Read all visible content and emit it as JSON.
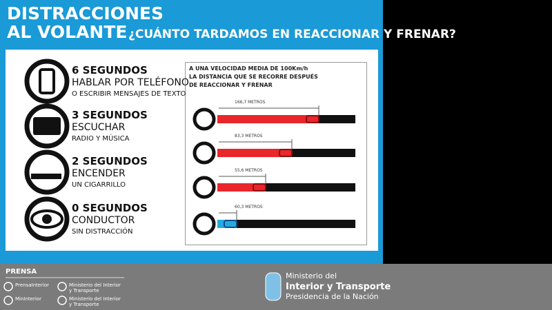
{
  "header": {
    "title_line1": "DISTRACCIONES",
    "title_line2": "AL VOLANTE",
    "subtitle": "¿CUÁNTO TARDAMOS EN REACCIONAR Y FRENAR?"
  },
  "items": [
    {
      "time": "6 SEGUNDOS",
      "action": "HABLAR POR TELÉFONO",
      "detail": "O ESCRIBIR MENSAJES DE TEXTO"
    },
    {
      "time": "3 SEGUNDOS",
      "action": "ESCUCHAR",
      "detail": "RADIO Y MÚSICA"
    },
    {
      "time": "2 SEGUNDOS",
      "action": "ENCENDER",
      "detail": "UN CIGARRILLO"
    },
    {
      "time": "0 SEGUNDOS",
      "action": "CONDUCTOR",
      "detail": "SIN DISTRACCIÓN"
    }
  ],
  "chart": {
    "caption": [
      "A UNA VELOCIDAD MEDIA DE 100Km/h",
      "LA DISTANCIA QUE SE RECORRE DESPUÉS",
      "DE REACCIONAR Y FRENAR"
    ],
    "distances": [
      "166,7 METROS",
      "83,3 METROS",
      "55,6 METROS",
      "60,3 METROS"
    ]
  },
  "footer": {
    "prensa": "PRENSA",
    "links": [
      "PrensaInterior",
      "Ministerio del Interior y Transporte",
      "MinInterior",
      "Ministerio del Interior y Transporte"
    ],
    "ministry": [
      "Ministerio del",
      "Interior y Transporte",
      "Presidencia de la Nación"
    ]
  }
}
